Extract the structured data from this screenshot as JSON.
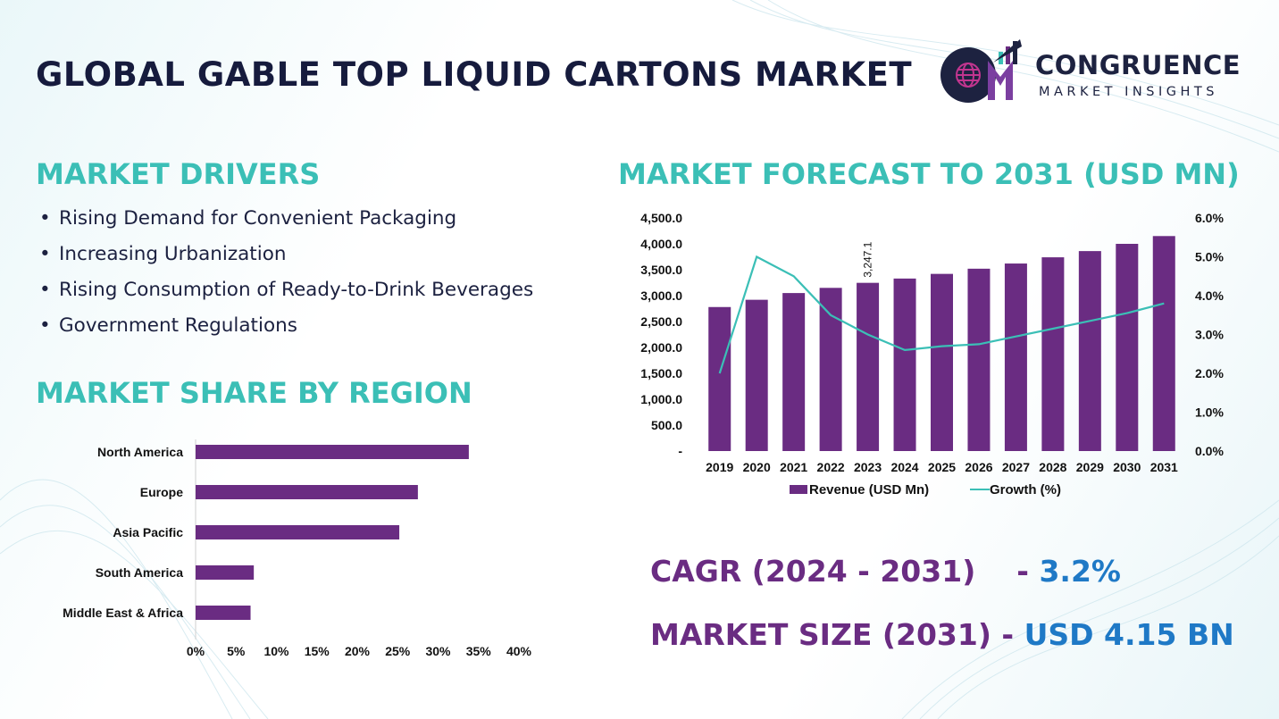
{
  "header": {
    "title": "GLOBAL GABLE TOP LIQUID CARTONS MARKET"
  },
  "logo": {
    "line1": "CONGRUENCE",
    "line2": "MARKET INSIGHTS",
    "monogram": "CM",
    "icon": "globe-icon"
  },
  "drivers": {
    "heading": "MARKET DRIVERS",
    "items": [
      "Rising Demand for Convenient Packaging",
      "Increasing Urbanization",
      "Rising Consumption of Ready-to-Drink Beverages",
      "Government Regulations"
    ]
  },
  "region": {
    "heading": "MARKET SHARE BY REGION"
  },
  "forecast": {
    "heading": "MARKET FORECAST TO 2031 (USD MN)"
  },
  "kpis": {
    "cagr_label": "CAGR (2024 - 2031)",
    "cagr_sep": "- ",
    "cagr_value": "3.2%",
    "size_label": "MARKET SIZE (2031)",
    "size_sep": " - ",
    "size_value": "USD 4.15 BN"
  },
  "colors": {
    "bar": "#6a2c82",
    "line": "#3bbfb6",
    "heading": "#3bbfb6",
    "kpi_value": "#1f79c6",
    "title": "#161b3d"
  },
  "chart_data": [
    {
      "type": "bar",
      "orientation": "horizontal",
      "categories": [
        "North America",
        "Europe",
        "Asia Pacific",
        "South America",
        "Middle East & Africa"
      ],
      "values": [
        33.8,
        27.5,
        25.2,
        7.2,
        6.8
      ],
      "xlim": [
        0,
        40
      ],
      "xticks": [
        "0%",
        "5%",
        "10%",
        "15%",
        "20%",
        "25%",
        "30%",
        "35%",
        "40%"
      ],
      "grid": false
    },
    {
      "type": "bar",
      "categories": [
        "2019",
        "2020",
        "2021",
        "2022",
        "2023",
        "2024",
        "2025",
        "2026",
        "2027",
        "2028",
        "2029",
        "2030",
        "2031"
      ],
      "series": [
        {
          "name": "Revenue (USD Mn)",
          "type": "bar",
          "axis": "left",
          "values": [
            2780,
            2920,
            3050,
            3150,
            3247.1,
            3330,
            3420,
            3520,
            3620,
            3740,
            3860,
            4000,
            4150
          ]
        },
        {
          "name": "Growth (%)",
          "type": "line",
          "axis": "right",
          "values": [
            2.0,
            5.0,
            4.5,
            3.5,
            3.0,
            2.6,
            2.7,
            2.75,
            2.95,
            3.15,
            3.35,
            3.55,
            3.8
          ]
        }
      ],
      "data_labels": [
        {
          "index": 4,
          "text": "3,247.1"
        }
      ],
      "ylim_left": [
        0,
        4500
      ],
      "yticks_left": [
        "-",
        "500.0",
        "1,000.0",
        "1,500.0",
        "2,000.0",
        "2,500.0",
        "3,000.0",
        "3,500.0",
        "4,000.0",
        "4,500.0"
      ],
      "ylim_right": [
        0,
        6
      ],
      "yticks_right": [
        "0.0%",
        "1.0%",
        "2.0%",
        "3.0%",
        "4.0%",
        "5.0%",
        "6.0%"
      ],
      "legend": "bottom",
      "grid": false
    }
  ]
}
